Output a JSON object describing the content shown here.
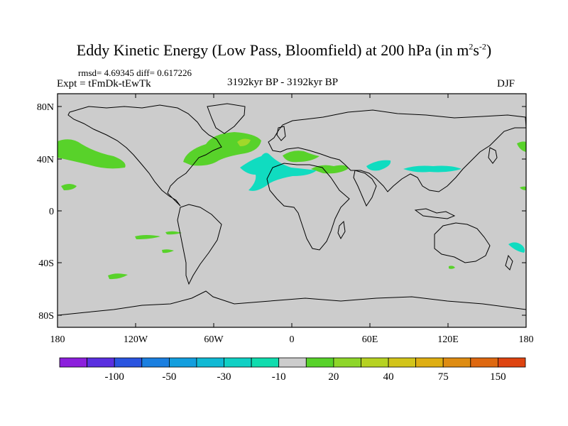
{
  "figure": {
    "title_main": "Eddy Kinetic Energy (Low Pass, Bloomfield) at 200 hPa (in m",
    "title_sup1": "2",
    "title_mid": "s",
    "title_sup2": "-2",
    "title_end": ")",
    "stats": "rmsd= 4.69345 diff= 0.617226",
    "experiment": "Expt = tFmDk-tEwTk",
    "period": "3192kyr BP - 3192kyr BP",
    "season": "DJF"
  },
  "axes": {
    "y_labels": [
      "80N",
      "40N",
      "0",
      "40S",
      "80S"
    ],
    "x_labels": [
      "180",
      "120W",
      "60W",
      "0",
      "60E",
      "120E",
      "180"
    ]
  },
  "colorbar": {
    "colors": [
      "#8c1fdc",
      "#5a2fe0",
      "#2a54e0",
      "#1a7fe0",
      "#139ede",
      "#10b9d4",
      "#10d0c4",
      "#10dcae",
      "#cccccc",
      "#58d22a",
      "#8ed62a",
      "#b6d222",
      "#d2c41a",
      "#deae12",
      "#de8c12",
      "#de6810",
      "#de4410"
    ],
    "labels": [
      "-100",
      "-50",
      "-30",
      "-10",
      "20",
      "40",
      "75",
      "150"
    ]
  },
  "colors": {
    "ocean": "#cccccc",
    "positive_small": "#58d22a",
    "positive_mid": "#a0d82a",
    "negative_small": "#10dcc0"
  }
}
